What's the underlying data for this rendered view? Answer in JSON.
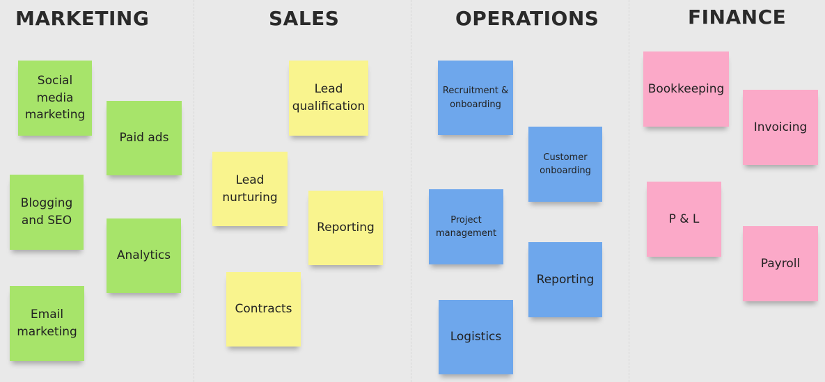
{
  "colors": {
    "background": "#e9e9e9",
    "marketing": "#a7e46a",
    "sales": "#f9f48e",
    "operations": "#6ea7ec",
    "finance": "#fba9c8"
  },
  "columns": [
    {
      "title": "MARKETING",
      "notes": [
        "Social media marketing",
        "Paid ads",
        "Blogging and SEO",
        "Analytics",
        "Email marketing"
      ]
    },
    {
      "title": "SALES",
      "notes": [
        "Lead qualification",
        "Lead nurturing",
        "Reporting",
        "Contracts"
      ]
    },
    {
      "title": "OPERATIONS",
      "notes": [
        "Recruitment & onboarding",
        "Customer onboarding",
        "Project management",
        "Reporting",
        "Logistics"
      ]
    },
    {
      "title": "FINANCE",
      "notes": [
        "Bookkeeping",
        "Invoicing",
        "P & L",
        "Payroll"
      ]
    }
  ]
}
